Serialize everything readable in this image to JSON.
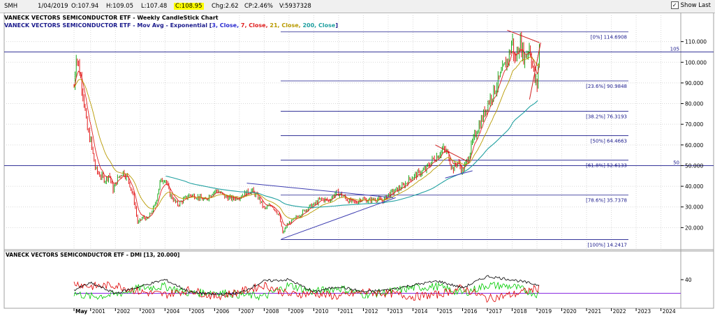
{
  "toolbar": {
    "symbol": "SMH",
    "date": "1/04/2019",
    "open": "O:107.94",
    "high": "H:109.05",
    "low": "L:107.48",
    "close": "C:108.95",
    "change": "Chg:2.62",
    "change_pct": "CP:2.46%",
    "volume": "V:5937328",
    "show_last_label": "Show Last",
    "show_last_checked": true
  },
  "colors": {
    "price_up": "#00a000",
    "price_down": "#e00000",
    "ema3": "#2a2ad0",
    "ema7": "#e02020",
    "ema21": "#b89a00",
    "ema200": "#20a0a0",
    "fib_line": "#1a1a8c",
    "trend_blue": "#3c3cb0",
    "trend_red": "#d02020",
    "dmi_plus": "#00cc00",
    "dmi_minus": "#e00000",
    "adx": "#000000",
    "dmi_level": "#8a2be2",
    "grid": "#d8d8d8"
  },
  "chart_data": [
    {
      "type": "line",
      "title": "VANECK VECTORS SEMICONDUCTOR ETF - Weekly CandleStick Chart",
      "indicator_label": {
        "prefix": "VANECK VECTORS SEMICONDUCTOR ETF - Mov Avg - Exponential [",
        "items": [
          "3, Close",
          "7, Close",
          "21, Close",
          "200, Close"
        ],
        "suffix": "]"
      },
      "x_axis": {
        "labels": [
          "May",
          "2001",
          "2002",
          "2003",
          "2004",
          "2005",
          "2006",
          "2007",
          "2008",
          "2009",
          "2010",
          "2011",
          "2012",
          "2013",
          "2014",
          "2015",
          "2016",
          "2017",
          "2018",
          "2019",
          "2020",
          "2021",
          "2022",
          "2023",
          "2024"
        ],
        "range": [
          2000.33,
          2024.8
        ]
      },
      "y_axis": {
        "ticks": [
          "20.000",
          "30.000",
          "40.000",
          "50.000",
          "60.000",
          "70.000",
          "80.000",
          "90.000",
          "100.000",
          "110.000"
        ],
        "range": [
          10,
          120
        ],
        "side": "right"
      },
      "x": [
        2000.33,
        2000.42,
        2000.55,
        2000.7,
        2000.85,
        2001.0,
        2001.2,
        2001.4,
        2001.6,
        2001.75,
        2001.9,
        2002.1,
        2002.3,
        2002.5,
        2002.7,
        2002.8,
        2002.9,
        2003.1,
        2003.3,
        2003.6,
        2003.8,
        2004.0,
        2004.2,
        2004.5,
        2004.8,
        2005.0,
        2005.3,
        2005.6,
        2005.9,
        2006.1,
        2006.4,
        2006.7,
        2007.0,
        2007.3,
        2007.5,
        2007.8,
        2008.0,
        2008.3,
        2008.6,
        2008.75,
        2008.9,
        2009.2,
        2009.5,
        2009.8,
        2010.0,
        2010.3,
        2010.6,
        2010.9,
        2011.1,
        2011.4,
        2011.7,
        2011.9,
        2012.2,
        2012.5,
        2012.8,
        2013.0,
        2013.3,
        2013.6,
        2013.9,
        2014.2,
        2014.5,
        2014.8,
        2015.0,
        2015.2,
        2015.4,
        2015.6,
        2015.8,
        2016.0,
        2016.2,
        2016.4,
        2016.6,
        2016.8,
        2017.0,
        2017.3,
        2017.6,
        2017.9,
        2018.0,
        2018.1,
        2018.3,
        2018.5,
        2018.7,
        2018.9,
        2019.0,
        2019.1
      ],
      "close": [
        88,
        104,
        96,
        85,
        68,
        62,
        48,
        45,
        43,
        46,
        38,
        44,
        47,
        44,
        36,
        30,
        22,
        25,
        24,
        31,
        42,
        44,
        36,
        31,
        34,
        36,
        35,
        33,
        37,
        38,
        35,
        34,
        35,
        37,
        38,
        34,
        29,
        31,
        26,
        17,
        21,
        24,
        27,
        30,
        31,
        34,
        33,
        37,
        36,
        33,
        32,
        34,
        33,
        34,
        33,
        36,
        38,
        40,
        44,
        46,
        48,
        53,
        55,
        58,
        56,
        48,
        52,
        47,
        53,
        61,
        68,
        73,
        80,
        87,
        95,
        104,
        112,
        100,
        110,
        102,
        108,
        92,
        88,
        108.95
      ],
      "ema200": [
        null,
        null,
        null,
        null,
        null,
        null,
        null,
        null,
        null,
        null,
        null,
        null,
        null,
        null,
        null,
        null,
        null,
        null,
        null,
        null,
        null,
        45,
        44.5,
        43.5,
        42.5,
        41.5,
        40.7,
        40.0,
        39.3,
        38.8,
        38.3,
        37.8,
        37.4,
        37.2,
        37.0,
        36.5,
        35.5,
        34.5,
        33.3,
        32.0,
        31.2,
        30.5,
        30.0,
        29.8,
        29.8,
        30.0,
        30.2,
        30.5,
        30.8,
        31.0,
        31.2,
        31.4,
        31.6,
        31.8,
        32.0,
        32.5,
        33.0,
        34.0,
        35.0,
        36.2,
        37.5,
        39.0,
        40.5,
        42.0,
        43.5,
        44.5,
        45.5,
        46.5,
        48.0,
        50.0,
        52.5,
        55.0,
        58.0,
        61.0,
        64.5,
        68.0,
        70.5,
        72.0,
        74.0,
        76.0,
        78.5,
        80.0,
        81.0,
        82.5
      ],
      "series_names": []
    },
    {
      "type": "line",
      "title": "VANECK VECTORS SEMICONDUCTOR ETF - DMI [13, 20.000]",
      "y_axis": {
        "ticks": [
          "40"
        ],
        "range": [
          0,
          80
        ]
      },
      "level": 20,
      "x": [
        2000.33,
        2001,
        2002,
        2003,
        2004,
        2005,
        2006,
        2007,
        2008,
        2009,
        2010,
        2011,
        2012,
        2013,
        2014,
        2015,
        2016,
        2017,
        2018,
        2019.1
      ],
      "plus_di": [
        20,
        15,
        18,
        28,
        30,
        20,
        22,
        18,
        15,
        32,
        22,
        28,
        18,
        22,
        28,
        30,
        20,
        32,
        30,
        18
      ],
      "minus_di": [
        35,
        30,
        32,
        22,
        18,
        25,
        15,
        22,
        32,
        18,
        20,
        15,
        22,
        20,
        15,
        18,
        28,
        12,
        18,
        28
      ],
      "adx": [
        25,
        35,
        20,
        30,
        40,
        22,
        18,
        20,
        38,
        40,
        22,
        30,
        22,
        25,
        32,
        38,
        28,
        45,
        40,
        32
      ],
      "series_names": []
    }
  ],
  "fib_levels": [
    {
      "label": "[0%] 114.6908",
      "value": 114.6908
    },
    {
      "label": "[23.6%] 90.9848",
      "value": 90.9848
    },
    {
      "label": "[38.2%] 76.3193",
      "value": 76.3193
    },
    {
      "label": "[50%] 64.4663",
      "value": 64.4663
    },
    {
      "label": "[61.8%] 52.6133",
      "value": 52.6133
    },
    {
      "label": "[78.6%] 35.7378",
      "value": 35.7378
    },
    {
      "label": "[100%] 14.2417",
      "value": 14.2417
    }
  ],
  "horizontal_lines": [
    {
      "label": "105",
      "value": 105
    },
    {
      "label": "50",
      "value": 50
    }
  ],
  "trendlines": [
    {
      "name": "wedge-upper",
      "from": [
        2007.3,
        41.5
      ],
      "to": [
        2013.2,
        34.5
      ],
      "color": "trend_blue"
    },
    {
      "name": "wedge-lower",
      "from": [
        2008.7,
        14.5
      ],
      "to": [
        2013.3,
        34.5
      ],
      "color": "trend_blue"
    },
    {
      "name": "flag-upper",
      "from": [
        2014.9,
        60
      ],
      "to": [
        2016.2,
        52
      ],
      "color": "trend_red"
    },
    {
      "name": "flag-lower",
      "from": [
        2015.3,
        44
      ],
      "to": [
        2016.4,
        47.5
      ],
      "color": "trend_blue"
    },
    {
      "name": "wedge2-upper",
      "from": [
        2017.8,
        115.5
      ],
      "to": [
        2019.1,
        109.5
      ],
      "color": "trend_red"
    },
    {
      "name": "wedge2-lower",
      "from": [
        2018.7,
        82
      ],
      "to": [
        2019.15,
        109.5
      ],
      "color": "trend_red"
    }
  ]
}
